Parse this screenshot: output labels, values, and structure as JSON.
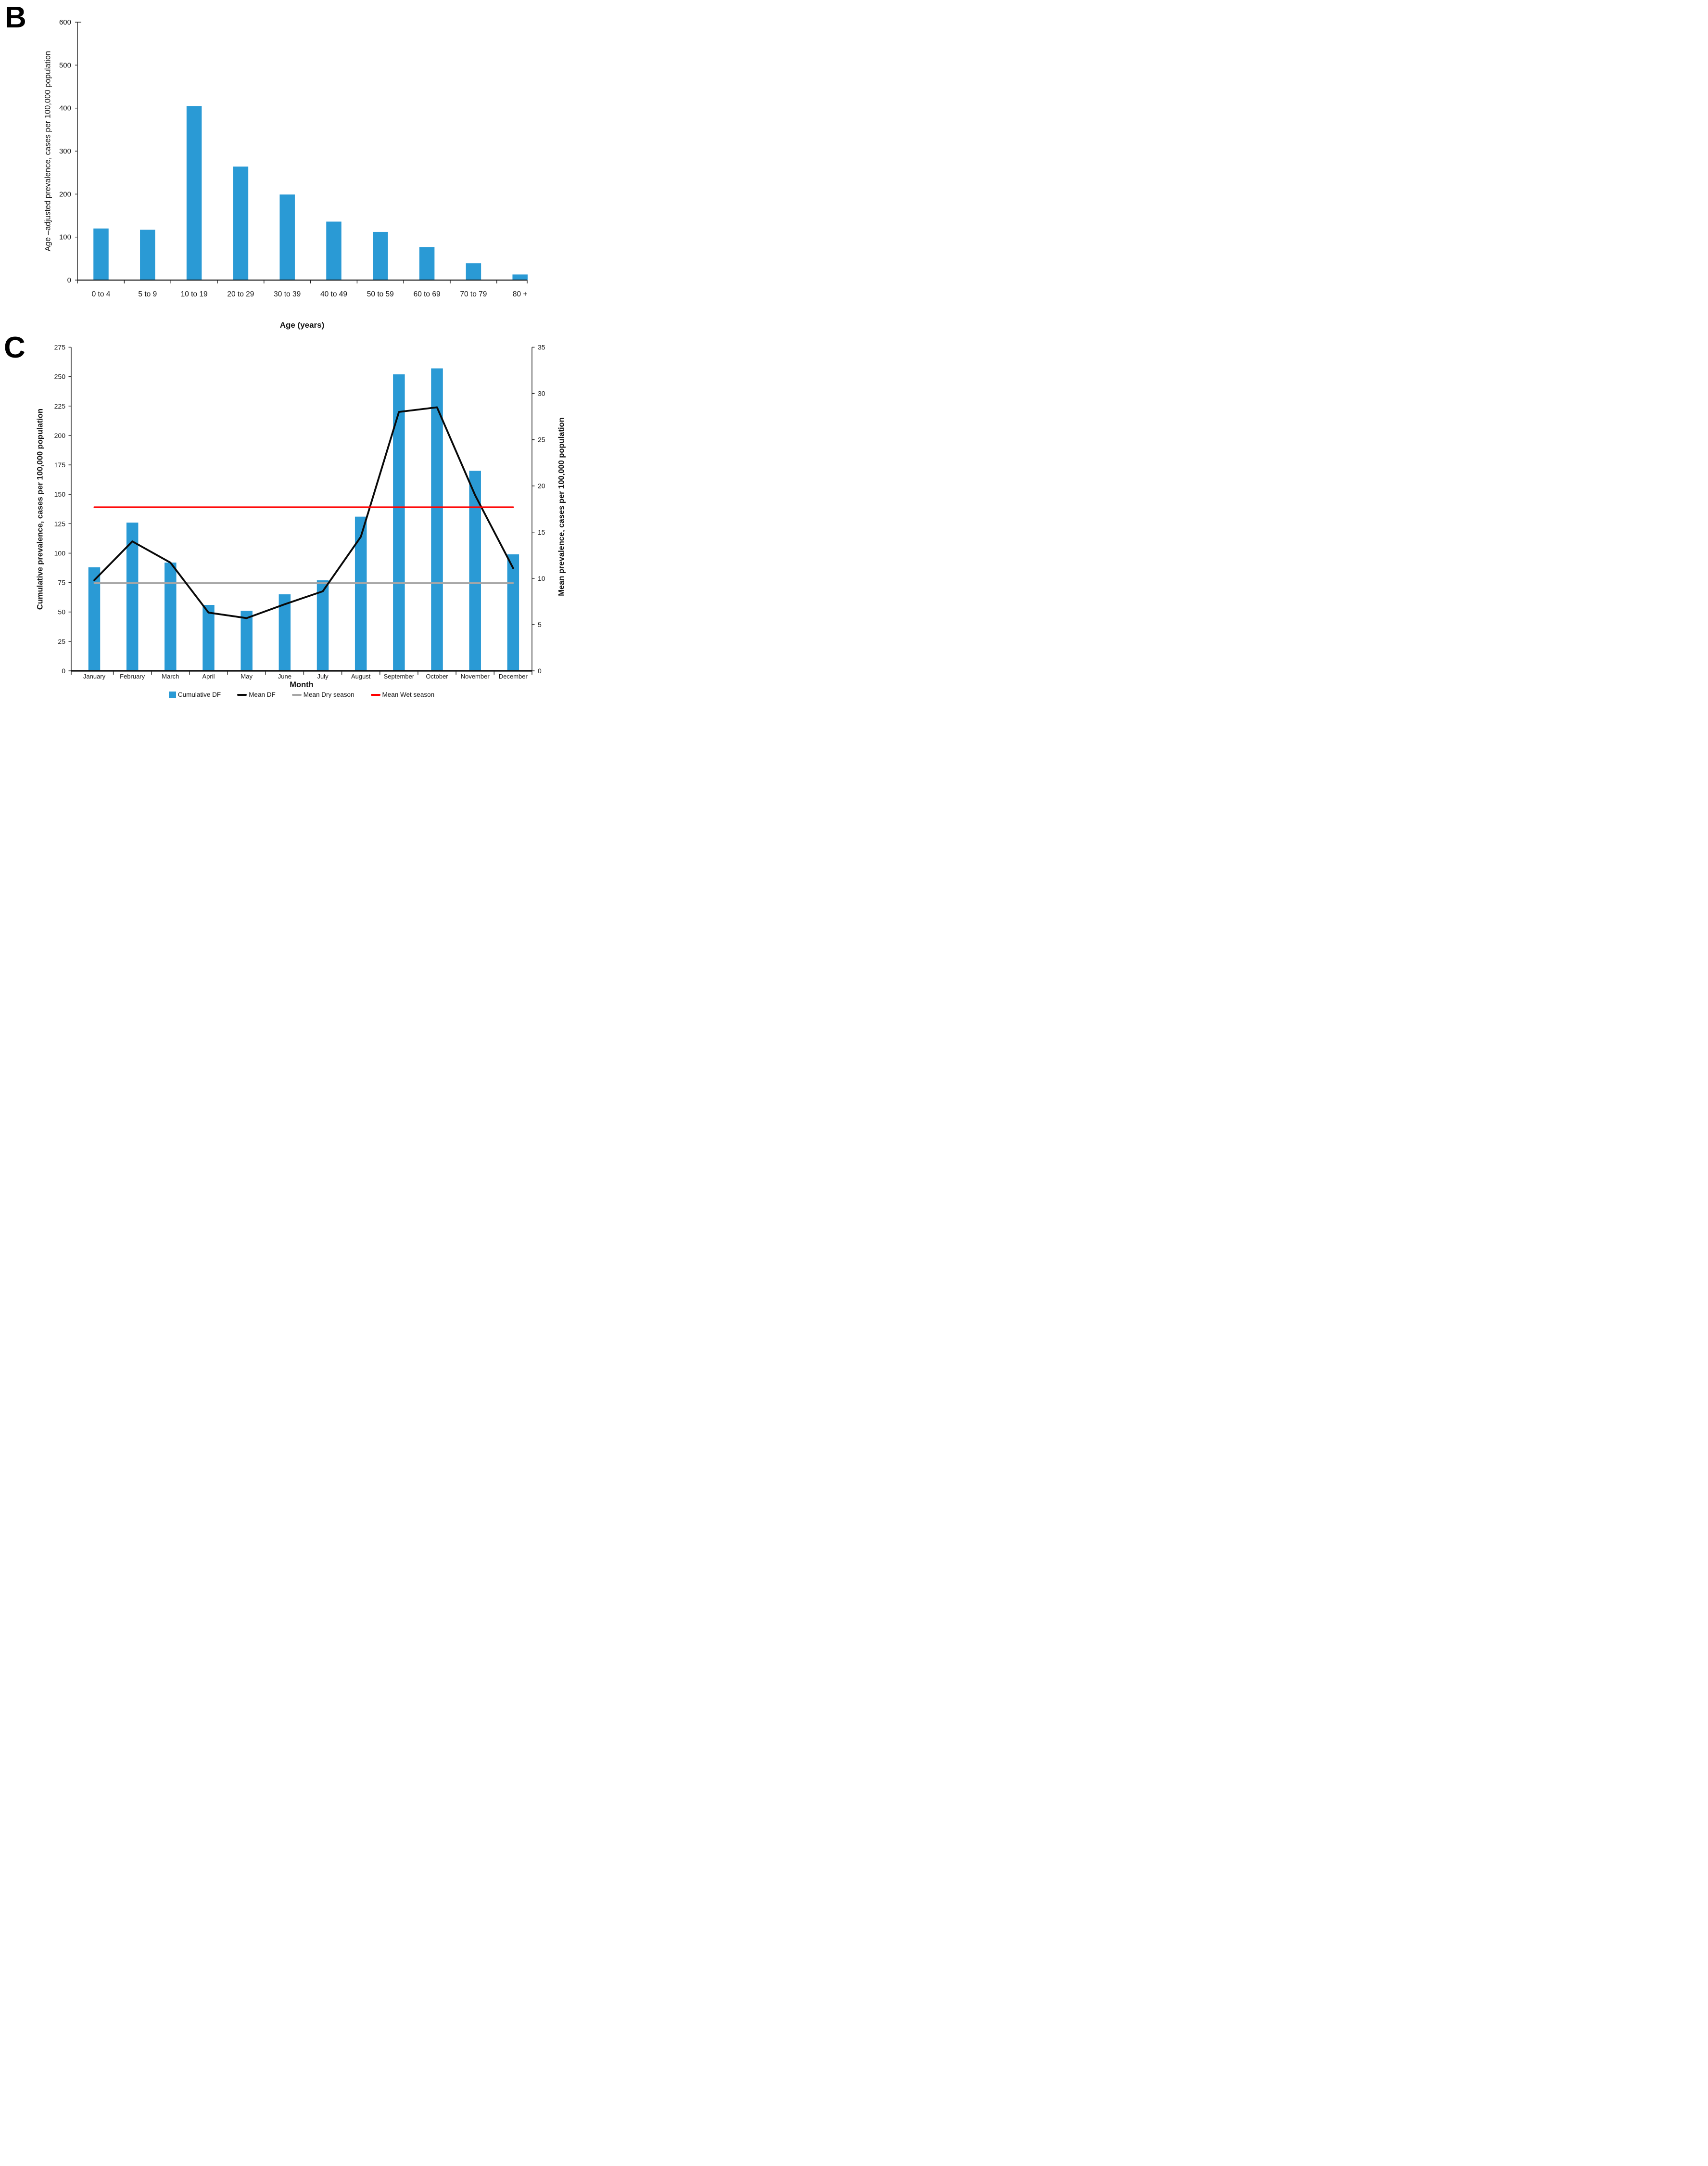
{
  "panels": {
    "B": {
      "label": "B"
    },
    "C": {
      "label": "C"
    }
  },
  "chart_data": [
    {
      "type": "bar",
      "panel": "B",
      "title": "",
      "categories": [
        "0 to 4",
        "5 to 9",
        "10 to 19",
        "20 to 29",
        "30 to 39",
        "40 to 49",
        "50 to 59",
        "60 to 69",
        "70 to 79",
        "80 +"
      ],
      "values": [
        120,
        117,
        405,
        264,
        199,
        136,
        112,
        77,
        39,
        13
      ],
      "xlabel": "Age (years)",
      "ylabel": "Age –adjusted prevalence, cases per 100,000 population",
      "ylim": [
        0,
        600
      ],
      "ytick_step": 100,
      "bar_color": "#2A9AD5",
      "grid": false,
      "legend_position": "none"
    },
    {
      "type": "bar+line",
      "panel": "C",
      "title": "",
      "categories": [
        "January",
        "February",
        "March",
        "April",
        "May",
        "June",
        "July",
        "August",
        "September",
        "October",
        "November",
        "December"
      ],
      "series": [
        {
          "name": "Cumulative DF",
          "type": "bar",
          "axis": "left",
          "color": "#2A9AD5",
          "values": [
            88,
            126,
            92,
            56,
            51,
            65,
            77,
            131,
            252,
            257,
            170,
            99
          ]
        },
        {
          "name": "Mean DF",
          "type": "line",
          "axis": "right",
          "color": "#0A0A0A",
          "values": [
            9.8,
            14.0,
            11.7,
            6.3,
            5.7,
            7.2,
            8.6,
            14.5,
            28.0,
            28.5,
            19.0,
            11.1
          ]
        },
        {
          "name": "Mean Dry season",
          "type": "line",
          "axis": "right",
          "color": "#A6A6A6",
          "constant": 9.5
        },
        {
          "name": "Mean Wet season",
          "type": "line",
          "axis": "right",
          "color": "#FF0000",
          "constant": 17.7
        }
      ],
      "xlabel": "Month",
      "ylabel_left": "Cumulative prevalence, cases per 100,000 population",
      "ylabel_right": "Mean prevalence, cases per 100,000 population",
      "ylim_left": [
        0,
        275
      ],
      "ytick_step_left": 25,
      "ylim_right": [
        0,
        35
      ],
      "ytick_step_right": 5,
      "grid": false,
      "legend_position": "bottom"
    }
  ]
}
